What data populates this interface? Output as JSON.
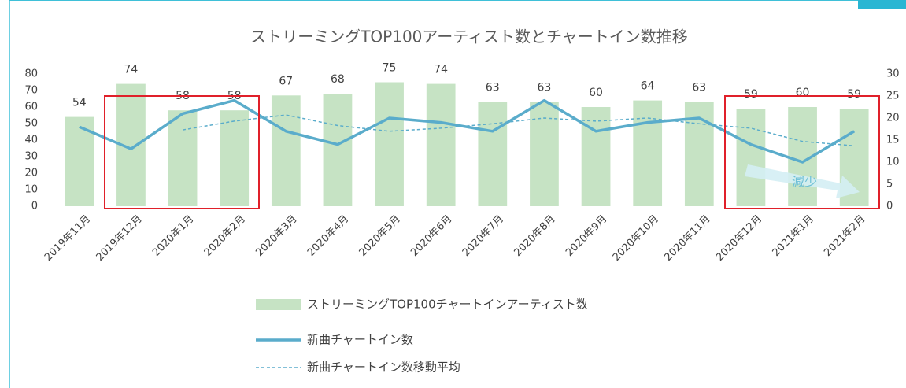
{
  "chart_data": {
    "type": "bar_line",
    "title": "ストリーミングTOP100アーティスト数とチャートイン数推移",
    "categories": [
      "2019年11月",
      "2019年12月",
      "2020年1月",
      "2020年2月",
      "2020年3月",
      "2020年4月",
      "2020年5月",
      "2020年6月",
      "2020年7月",
      "2020年8月",
      "2020年9月",
      "2020年10月",
      "2020年11月",
      "2020年12月",
      "2021年1月",
      "2021年2月"
    ],
    "series": [
      {
        "name": "ストリーミングTOP100チャートインアーティスト数",
        "type": "bar",
        "color": "#c6e3c4",
        "values": [
          54,
          74,
          58,
          58,
          67,
          68,
          75,
          74,
          63,
          63,
          60,
          64,
          63,
          59,
          60,
          59
        ]
      },
      {
        "name": "新曲チャートイン数",
        "type": "line",
        "axis": "y2",
        "color": "#5aaccb",
        "values": [
          18,
          13,
          21,
          24,
          17,
          14,
          20,
          19,
          17,
          24,
          17,
          19,
          20,
          14,
          10,
          17
        ]
      },
      {
        "name": "新曲チャートイン数移動平均",
        "type": "dashed",
        "axis": "y2",
        "color": "#5aaccb",
        "values": [
          null,
          null,
          17.3,
          19.3,
          20.7,
          18.3,
          17,
          17.7,
          18.7,
          20,
          19.3,
          20,
          18.7,
          17.7,
          14.7,
          13.7
        ]
      }
    ],
    "ylim": [
      0,
      80
    ],
    "yticks": [
      0,
      10,
      20,
      30,
      40,
      50,
      60,
      70,
      80
    ],
    "y2lim": [
      0,
      30
    ],
    "y2ticks": [
      0,
      5,
      10,
      15,
      20,
      25,
      30
    ],
    "annotation": "減少"
  }
}
